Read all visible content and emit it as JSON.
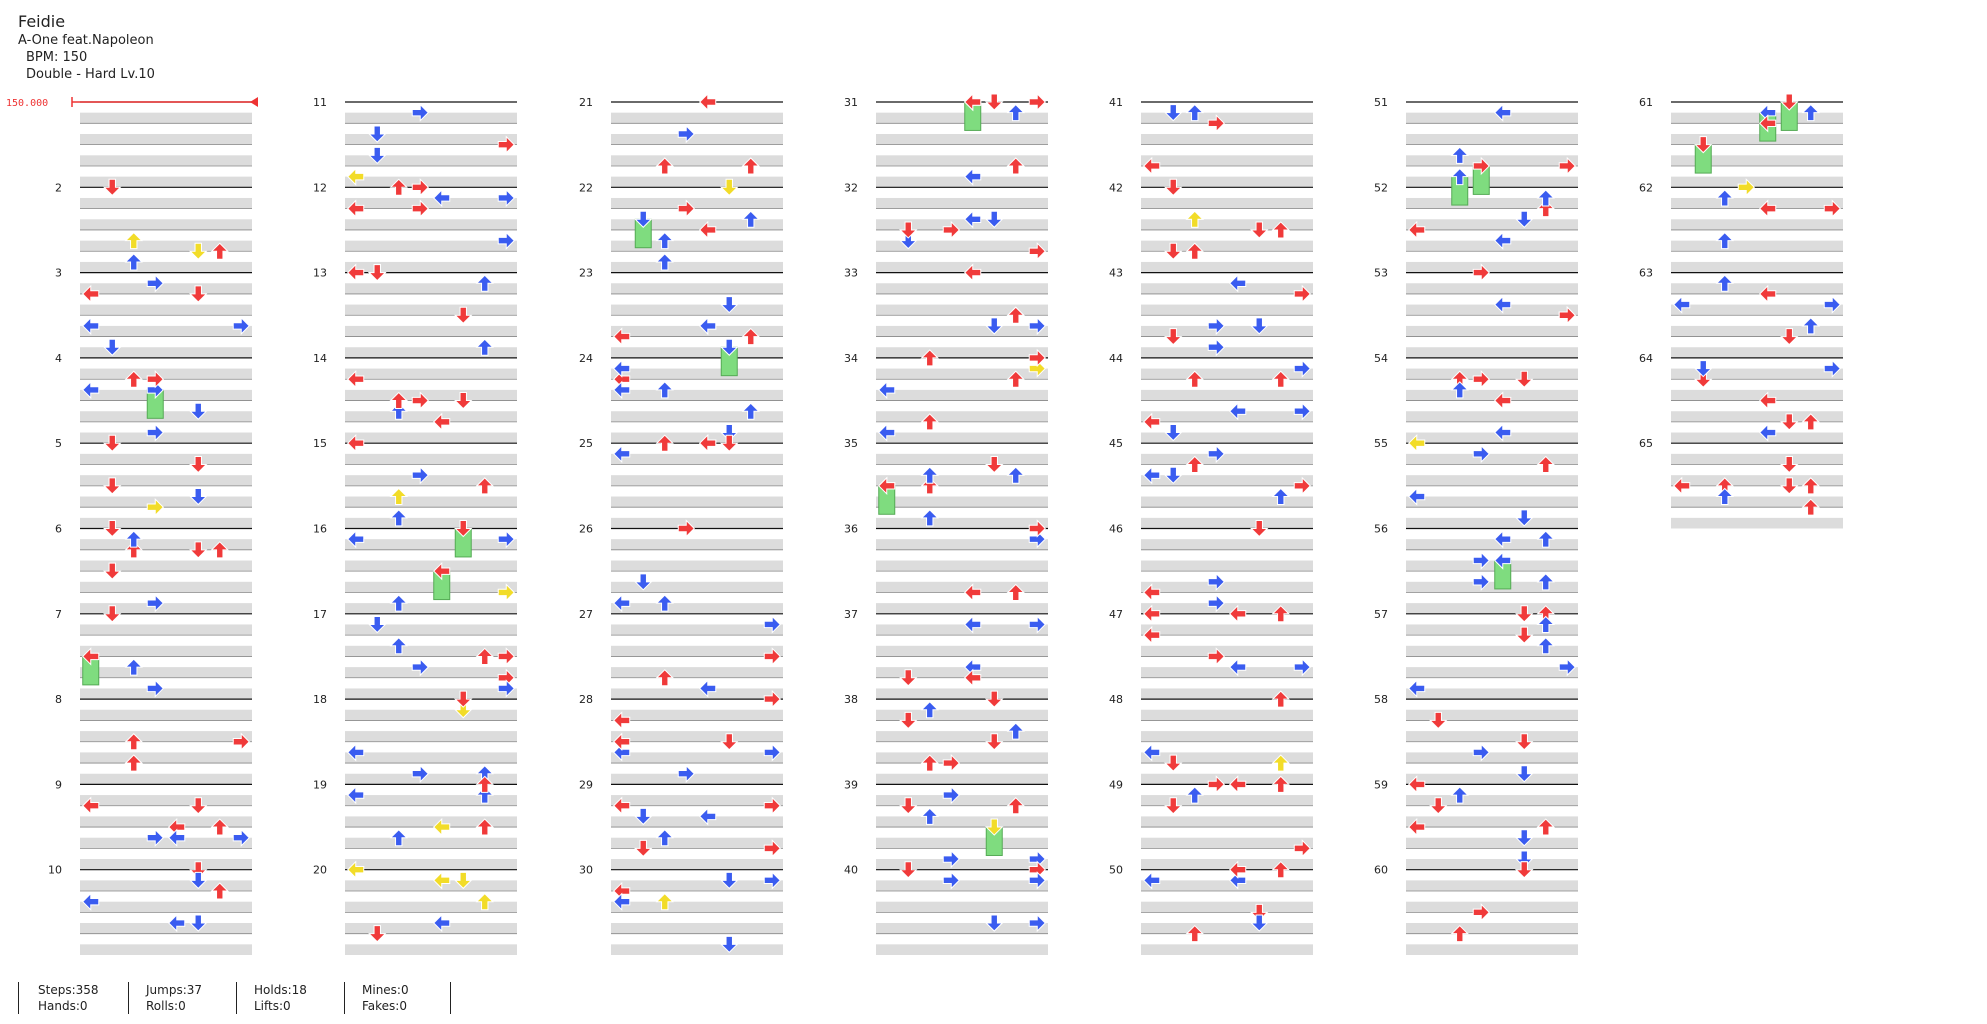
{
  "header": {
    "title": "Feidie",
    "artist": "A-One feat.Napoleon",
    "bpm": "BPM: 150",
    "difficulty": "Double - Hard  Lv.10"
  },
  "bpm_marker": "150.000",
  "colors": {
    "red": "#f03a3a",
    "blue": "#3a5cf0",
    "yellow": "#f2dc28",
    "hold": "#7fdc7f",
    "row_shade": "#dcdcdc"
  },
  "measure_labels": [
    "2",
    "3",
    "4",
    "5",
    "6",
    "7",
    "8",
    "9",
    "10",
    "11",
    "12",
    "13",
    "14",
    "15",
    "16",
    "17",
    "18",
    "19",
    "20",
    "21",
    "22",
    "23",
    "24",
    "25",
    "26",
    "27",
    "28",
    "29",
    "30",
    "31",
    "32",
    "33",
    "34",
    "35",
    "36",
    "37",
    "38",
    "39",
    "40",
    "41",
    "42",
    "43",
    "44",
    "45",
    "46",
    "47",
    "48",
    "49",
    "50",
    "51",
    "52",
    "53",
    "54",
    "55",
    "56",
    "57",
    "58",
    "59",
    "60",
    "61",
    "62",
    "63",
    "64",
    "65"
  ],
  "stats": {
    "steps": "Steps:358",
    "hands": "Hands:0",
    "jumps": "Jumps:37",
    "rolls": "Rolls:0",
    "holds": "Holds:18",
    "lifts": "Lifts:0",
    "mines": "Mines:0",
    "fakes": "Fakes:0"
  }
}
